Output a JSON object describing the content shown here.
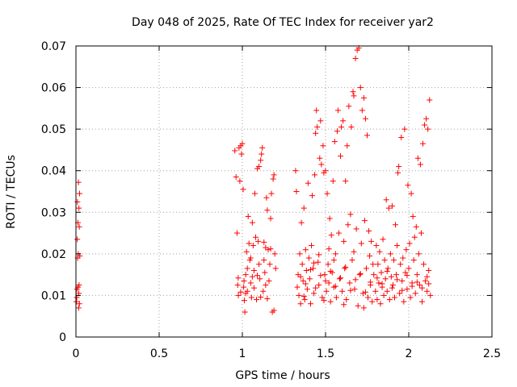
{
  "chart_data": {
    "type": "scatter",
    "title": "Day 048 of 2025, Rate Of TEC Index for receiver yar2",
    "xlabel": "GPS time / hours",
    "ylabel": "ROTI / TECUs",
    "xlim": [
      0,
      2.5
    ],
    "ylim": [
      0,
      0.07
    ],
    "grid": true,
    "marker": "plus",
    "marker_color": "#ff0000",
    "x_ticks": [
      {
        "value": 0,
        "label": "0"
      },
      {
        "value": 0.5,
        "label": "0.5"
      },
      {
        "value": 1,
        "label": "1"
      },
      {
        "value": 1.5,
        "label": "1.5"
      },
      {
        "value": 2,
        "label": "2"
      },
      {
        "value": 2.5,
        "label": "2.5"
      }
    ],
    "y_ticks": [
      {
        "value": 0,
        "label": "0"
      },
      {
        "value": 0.01,
        "label": "0.01"
      },
      {
        "value": 0.02,
        "label": "0.02"
      },
      {
        "value": 0.03,
        "label": "0.03"
      },
      {
        "value": 0.04,
        "label": "0.04"
      },
      {
        "value": 0.05,
        "label": "0.05"
      },
      {
        "value": 0.06,
        "label": "0.06"
      },
      {
        "value": 0.07,
        "label": "0.07"
      }
    ],
    "series": [
      {
        "name": "yar2",
        "points": [
          [
            0.003,
            0.0085
          ],
          [
            0.005,
            0.0095
          ],
          [
            0.006,
            0.0115
          ],
          [
            0.008,
            0.0235
          ],
          [
            0.009,
            0.0325
          ],
          [
            0.01,
            0.019
          ],
          [
            0.012,
            0.0275
          ],
          [
            0.013,
            0.012
          ],
          [
            0.014,
            0.02
          ],
          [
            0.015,
            0.0372
          ],
          [
            0.016,
            0.007
          ],
          [
            0.017,
            0.0105
          ],
          [
            0.018,
            0.031
          ],
          [
            0.019,
            0.0125
          ],
          [
            0.02,
            0.0265
          ],
          [
            0.021,
            0.008
          ],
          [
            0.022,
            0.0345
          ],
          [
            0.023,
            0.0195
          ],
          [
            0.955,
            0.0448
          ],
          [
            0.962,
            0.0385
          ],
          [
            0.968,
            0.025
          ],
          [
            0.972,
            0.0125
          ],
          [
            0.976,
            0.01
          ],
          [
            0.98,
            0.0455
          ],
          [
            0.985,
            0.0375
          ],
          [
            0.99,
            0.046
          ],
          [
            0.995,
            0.044
          ],
          [
            1.0,
            0.0465
          ],
          [
            1.005,
            0.0355
          ],
          [
            1.008,
            0.012
          ],
          [
            1.012,
            0.0088
          ],
          [
            1.015,
            0.006
          ],
          [
            1.02,
            0.015
          ],
          [
            1.025,
            0.0205
          ],
          [
            1.03,
            0.011
          ],
          [
            1.035,
            0.029
          ],
          [
            1.04,
            0.0225
          ],
          [
            1.045,
            0.0185
          ],
          [
            1.05,
            0.013
          ],
          [
            1.055,
            0.0095
          ],
          [
            1.06,
            0.0275
          ],
          [
            1.065,
            0.022
          ],
          [
            1.07,
            0.016
          ],
          [
            1.075,
            0.0345
          ],
          [
            1.08,
            0.024
          ],
          [
            1.085,
            0.009
          ],
          [
            1.09,
            0.0405
          ],
          [
            1.095,
            0.023
          ],
          [
            1.1,
            0.041
          ],
          [
            1.105,
            0.014
          ],
          [
            1.11,
            0.0425
          ],
          [
            1.115,
            0.044
          ],
          [
            1.12,
            0.0455
          ],
          [
            1.125,
            0.011
          ],
          [
            1.13,
            0.0185
          ],
          [
            1.135,
            0.0155
          ],
          [
            1.14,
            0.0125
          ],
          [
            1.145,
            0.0335
          ],
          [
            1.15,
            0.0305
          ],
          [
            1.155,
            0.021
          ],
          [
            1.16,
            0.0135
          ],
          [
            1.165,
            0.0175
          ],
          [
            1.17,
            0.0285
          ],
          [
            1.175,
            0.0345
          ],
          [
            1.18,
            0.006
          ],
          [
            1.185,
            0.038
          ],
          [
            1.19,
            0.039
          ],
          [
            1.195,
            0.02
          ],
          [
            1.2,
            0.0165
          ],
          [
            0.975,
            0.0142
          ],
          [
            0.99,
            0.0108
          ],
          [
            1.01,
            0.0135
          ],
          [
            1.03,
            0.0165
          ],
          [
            1.05,
            0.019
          ],
          [
            1.07,
            0.0118
          ],
          [
            1.09,
            0.0148
          ],
          [
            1.11,
            0.0096
          ],
          [
            1.13,
            0.0228
          ],
          [
            1.15,
            0.0092
          ],
          [
            1.17,
            0.0212
          ],
          [
            1.19,
            0.0064
          ],
          [
            1.02,
            0.0105
          ],
          [
            1.06,
            0.0145
          ],
          [
            1.1,
            0.0175
          ],
          [
            1.14,
            0.0215
          ],
          [
            1.32,
            0.04
          ],
          [
            1.325,
            0.035
          ],
          [
            1.33,
            0.012
          ],
          [
            1.335,
            0.015
          ],
          [
            1.34,
            0.01
          ],
          [
            1.345,
            0.02
          ],
          [
            1.35,
            0.008
          ],
          [
            1.355,
            0.0275
          ],
          [
            1.36,
            0.0175
          ],
          [
            1.365,
            0.0135
          ],
          [
            1.37,
            0.031
          ],
          [
            1.375,
            0.009
          ],
          [
            1.38,
            0.021
          ],
          [
            1.385,
            0.016
          ],
          [
            1.39,
            0.0115
          ],
          [
            1.395,
            0.037
          ],
          [
            1.4,
            0.019
          ],
          [
            1.405,
            0.014
          ],
          [
            1.41,
            0.008
          ],
          [
            1.415,
            0.022
          ],
          [
            1.42,
            0.034
          ],
          [
            1.425,
            0.0165
          ],
          [
            1.43,
            0.0105
          ],
          [
            1.435,
            0.039
          ],
          [
            1.44,
            0.049
          ],
          [
            1.445,
            0.0545
          ],
          [
            1.45,
            0.0505
          ],
          [
            1.455,
            0.018
          ],
          [
            1.46,
            0.0125
          ],
          [
            1.465,
            0.043
          ],
          [
            1.47,
            0.052
          ],
          [
            1.475,
            0.0415
          ],
          [
            1.48,
            0.0095
          ],
          [
            1.485,
            0.046
          ],
          [
            1.49,
            0.0395
          ],
          [
            1.495,
            0.015
          ],
          [
            1.5,
            0.04
          ],
          [
            1.505,
            0.011
          ],
          [
            1.51,
            0.0345
          ],
          [
            1.515,
            0.0175
          ],
          [
            1.52,
            0.013
          ],
          [
            1.525,
            0.0285
          ],
          [
            1.53,
            0.0085
          ],
          [
            1.535,
            0.0245
          ],
          [
            1.54,
            0.0155
          ],
          [
            1.545,
            0.0375
          ],
          [
            1.55,
            0.012
          ],
          [
            1.555,
            0.047
          ],
          [
            1.56,
            0.02
          ],
          [
            1.565,
            0.0095
          ],
          [
            1.57,
            0.0495
          ],
          [
            1.575,
            0.0545
          ],
          [
            1.58,
            0.025
          ],
          [
            1.585,
            0.014
          ],
          [
            1.59,
            0.0435
          ],
          [
            1.595,
            0.0505
          ],
          [
            1.6,
            0.011
          ],
          [
            1.605,
            0.052
          ],
          [
            1.61,
            0.023
          ],
          [
            1.615,
            0.0165
          ],
          [
            1.62,
            0.0375
          ],
          [
            1.625,
            0.009
          ],
          [
            1.63,
            0.046
          ],
          [
            1.635,
            0.027
          ],
          [
            1.64,
            0.0555
          ],
          [
            1.645,
            0.013
          ],
          [
            1.65,
            0.0295
          ],
          [
            1.655,
            0.0505
          ],
          [
            1.66,
            0.0185
          ],
          [
            1.665,
            0.059
          ],
          [
            1.67,
            0.058
          ],
          [
            1.675,
            0.0115
          ],
          [
            1.68,
            0.067
          ],
          [
            1.685,
            0.026
          ],
          [
            1.69,
            0.069
          ],
          [
            1.695,
            0.0075
          ],
          [
            1.7,
            0.0695
          ],
          [
            1.705,
            0.015
          ],
          [
            1.71,
            0.06
          ],
          [
            1.715,
            0.0225
          ],
          [
            1.72,
            0.0545
          ],
          [
            1.725,
            0.0105
          ],
          [
            1.73,
            0.0575
          ],
          [
            1.735,
            0.028
          ],
          [
            1.74,
            0.0525
          ],
          [
            1.745,
            0.0165
          ],
          [
            1.75,
            0.0485
          ],
          [
            1.755,
            0.0095
          ],
          [
            1.76,
            0.0255
          ],
          [
            1.765,
            0.0195
          ],
          [
            1.77,
            0.0125
          ],
          [
            1.775,
            0.023
          ],
          [
            1.78,
            0.0085
          ],
          [
            1.785,
            0.0175
          ],
          [
            1.35,
            0.0145
          ],
          [
            1.38,
            0.0128
          ],
          [
            1.41,
            0.0162
          ],
          [
            1.44,
            0.0118
          ],
          [
            1.47,
            0.0148
          ],
          [
            1.5,
            0.0135
          ],
          [
            1.53,
            0.0158
          ],
          [
            1.56,
            0.0122
          ],
          [
            1.59,
            0.0142
          ],
          [
            1.62,
            0.0168
          ],
          [
            1.65,
            0.0112
          ],
          [
            1.68,
            0.0138
          ],
          [
            1.71,
            0.0152
          ],
          [
            1.74,
            0.0108
          ],
          [
            1.77,
            0.0132
          ],
          [
            1.37,
            0.0098
          ],
          [
            1.43,
            0.0178
          ],
          [
            1.49,
            0.0088
          ],
          [
            1.55,
            0.0185
          ],
          [
            1.61,
            0.0078
          ],
          [
            1.67,
            0.0205
          ],
          [
            1.73,
            0.007
          ],
          [
            1.52,
            0.0212
          ],
          [
            1.46,
            0.0198
          ],
          [
            1.79,
            0.015
          ],
          [
            1.8,
            0.011
          ],
          [
            1.805,
            0.022
          ],
          [
            1.81,
            0.009
          ],
          [
            1.815,
            0.0175
          ],
          [
            1.82,
            0.013
          ],
          [
            1.825,
            0.0205
          ],
          [
            1.83,
            0.008
          ],
          [
            1.835,
            0.0155
          ],
          [
            1.84,
            0.012
          ],
          [
            1.845,
            0.0235
          ],
          [
            1.85,
            0.01
          ],
          [
            1.855,
            0.0185
          ],
          [
            1.86,
            0.014
          ],
          [
            1.865,
            0.033
          ],
          [
            1.87,
            0.011
          ],
          [
            1.875,
            0.0165
          ],
          [
            1.88,
            0.031
          ],
          [
            1.885,
            0.009
          ],
          [
            1.89,
            0.02
          ],
          [
            1.895,
            0.0145
          ],
          [
            1.9,
            0.0315
          ],
          [
            1.905,
            0.0125
          ],
          [
            1.91,
            0.0185
          ],
          [
            1.915,
            0.0095
          ],
          [
            1.92,
            0.027
          ],
          [
            1.925,
            0.015
          ],
          [
            1.93,
            0.022
          ],
          [
            1.935,
            0.0395
          ],
          [
            1.94,
            0.041
          ],
          [
            1.945,
            0.0105
          ],
          [
            1.95,
            0.0175
          ],
          [
            1.955,
            0.048
          ],
          [
            1.96,
            0.0135
          ],
          [
            1.965,
            0.019
          ],
          [
            1.97,
            0.0085
          ],
          [
            1.975,
            0.05
          ],
          [
            1.98,
            0.0155
          ],
          [
            1.985,
            0.021
          ],
          [
            1.99,
            0.0115
          ],
          [
            1.995,
            0.0365
          ],
          [
            2.0,
            0.0165
          ],
          [
            2.005,
            0.0225
          ],
          [
            2.01,
            0.0095
          ],
          [
            2.015,
            0.0345
          ],
          [
            2.02,
            0.013
          ],
          [
            2.025,
            0.029
          ],
          [
            2.03,
            0.0185
          ],
          [
            2.035,
            0.024
          ],
          [
            2.04,
            0.0105
          ],
          [
            2.045,
            0.0265
          ],
          [
            2.05,
            0.015
          ],
          [
            2.055,
            0.043
          ],
          [
            2.06,
            0.02
          ],
          [
            2.065,
            0.0125
          ],
          [
            2.07,
            0.0415
          ],
          [
            2.075,
            0.025
          ],
          [
            2.08,
            0.0085
          ],
          [
            2.085,
            0.0465
          ],
          [
            2.09,
            0.0175
          ],
          [
            2.095,
            0.051
          ],
          [
            2.1,
            0.0135
          ],
          [
            2.105,
            0.0525
          ],
          [
            2.11,
            0.011
          ],
          [
            2.115,
            0.05
          ],
          [
            2.12,
            0.016
          ],
          [
            2.125,
            0.057
          ],
          [
            2.13,
            0.01
          ],
          [
            1.81,
            0.0142
          ],
          [
            1.84,
            0.0128
          ],
          [
            1.87,
            0.0158
          ],
          [
            1.9,
            0.0118
          ],
          [
            1.93,
            0.0138
          ],
          [
            1.96,
            0.0112
          ],
          [
            1.99,
            0.0148
          ],
          [
            2.02,
            0.0122
          ],
          [
            2.05,
            0.0132
          ],
          [
            2.08,
            0.0118
          ],
          [
            2.11,
            0.0145
          ],
          [
            2.12,
            0.0128
          ]
        ]
      }
    ]
  }
}
